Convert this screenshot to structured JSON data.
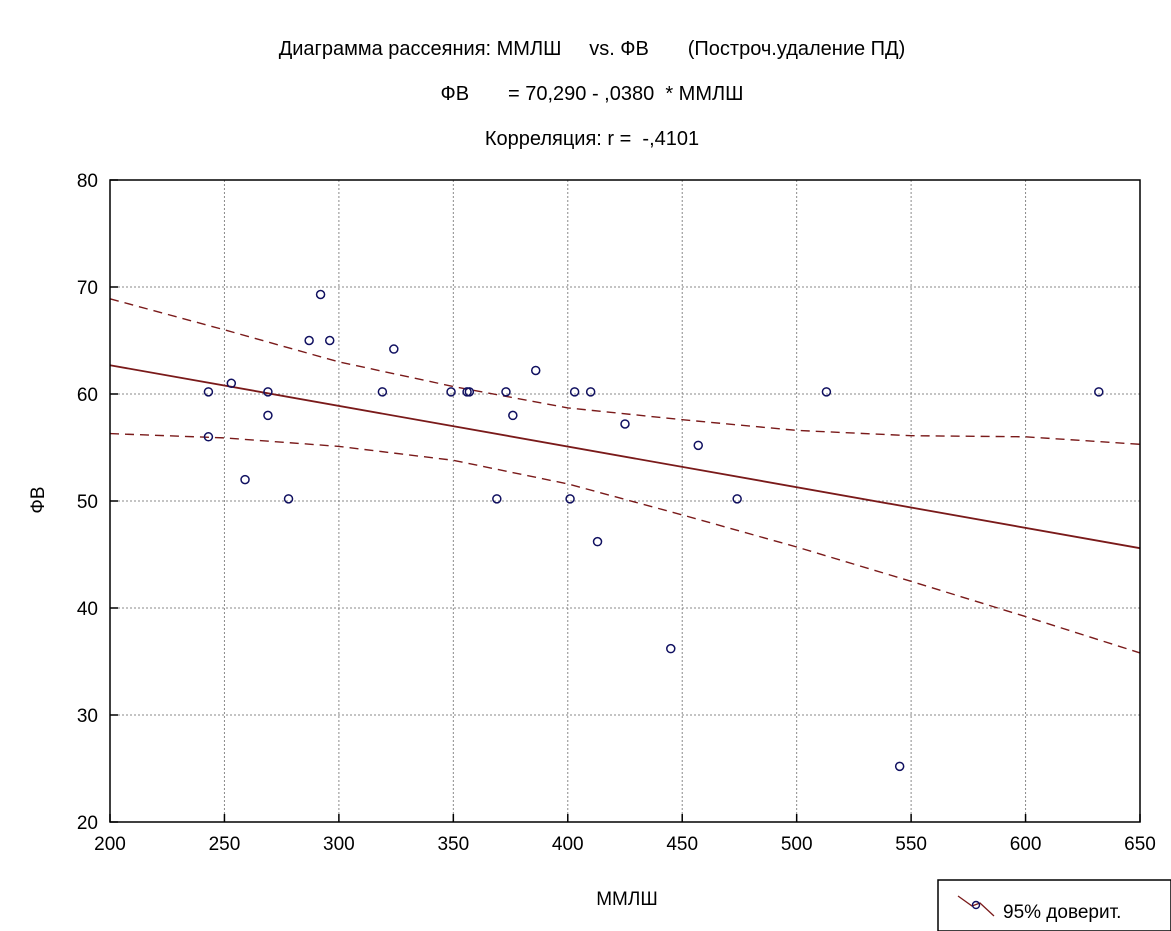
{
  "chart_data": {
    "type": "scatter",
    "title": "Диаграмма рассеяния: ММЛШ     vs. ФВ       (Построч.удаление ПД)",
    "subtitle": "ФВ       = 70,290 - ,0380  * ММЛШ",
    "subtitle2": "Корреляция: r =  -,4101",
    "xlabel": "ММЛШ",
    "ylabel": "ФВ",
    "xlim": [
      200,
      650
    ],
    "ylim": [
      20,
      80
    ],
    "x_ticks": [
      200,
      250,
      300,
      350,
      400,
      450,
      500,
      550,
      600,
      650
    ],
    "y_ticks": [
      20,
      30,
      40,
      50,
      60,
      70,
      80
    ],
    "grid": true,
    "legend_position": "bottom-right",
    "legend_label": "95% доверит.",
    "regression": {
      "intercept": 70.29,
      "slope": -0.038
    },
    "confidence_band": {
      "x": [
        200,
        250,
        300,
        350,
        400,
        450,
        500,
        550,
        600,
        650
      ],
      "upper": [
        68.9,
        66.0,
        63.0,
        60.7,
        58.7,
        57.6,
        56.6,
        56.1,
        56.0,
        55.3
      ],
      "lower": [
        56.3,
        55.9,
        55.1,
        53.8,
        51.6,
        48.7,
        45.7,
        42.5,
        39.2,
        35.8
      ]
    },
    "points": [
      {
        "x": 243,
        "y": 60.2
      },
      {
        "x": 243,
        "y": 56.0
      },
      {
        "x": 253,
        "y": 61.0
      },
      {
        "x": 259,
        "y": 52.0
      },
      {
        "x": 269,
        "y": 60.2
      },
      {
        "x": 269,
        "y": 58.0
      },
      {
        "x": 278,
        "y": 50.2
      },
      {
        "x": 287,
        "y": 65.0
      },
      {
        "x": 292,
        "y": 69.3
      },
      {
        "x": 296,
        "y": 65.0
      },
      {
        "x": 319,
        "y": 60.2
      },
      {
        "x": 324,
        "y": 64.2
      },
      {
        "x": 349,
        "y": 60.2
      },
      {
        "x": 356,
        "y": 60.2
      },
      {
        "x": 357,
        "y": 60.2
      },
      {
        "x": 369,
        "y": 50.2
      },
      {
        "x": 373,
        "y": 60.2
      },
      {
        "x": 376,
        "y": 58.0
      },
      {
        "x": 386,
        "y": 62.2
      },
      {
        "x": 401,
        "y": 50.2
      },
      {
        "x": 403,
        "y": 60.2
      },
      {
        "x": 410,
        "y": 60.2
      },
      {
        "x": 413,
        "y": 46.2
      },
      {
        "x": 425,
        "y": 57.2
      },
      {
        "x": 445,
        "y": 36.2
      },
      {
        "x": 457,
        "y": 55.2
      },
      {
        "x": 474,
        "y": 50.2
      },
      {
        "x": 513,
        "y": 60.2
      },
      {
        "x": 545,
        "y": 25.2
      },
      {
        "x": 632,
        "y": 60.2
      }
    ],
    "colors": {
      "regression": "#7a1a1a",
      "band": "#7a1a1a",
      "points": "#101060",
      "grid": "#8a8a8a"
    }
  }
}
